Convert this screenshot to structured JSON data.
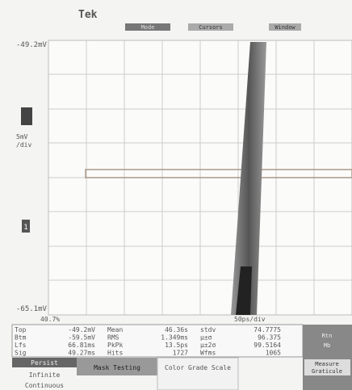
{
  "header": {
    "brand": "Tek",
    "buttons": [
      "Mode",
      "Cursors",
      "Window"
    ]
  },
  "screen": {
    "top_level": "-49.2mV",
    "scale": "5mV",
    "scale_unit": "/div",
    "marker": "1",
    "bottom_level": "-65.1mV",
    "left_readout": "40.7%",
    "timebase": "50ps/div"
  },
  "readouts": {
    "columns": [
      [
        [
          "Top",
          "-49.2mV"
        ],
        [
          "Btm",
          "-59.5mV"
        ],
        [
          "Lfs",
          "66.81ms"
        ],
        [
          "Sig",
          "49.27ms"
        ]
      ],
      [
        [
          "Mean",
          "46.36s"
        ],
        [
          "RMS",
          "1.349ms"
        ],
        [
          "PkPk",
          "13.5ps"
        ],
        [
          "Hits",
          "1727"
        ]
      ],
      [
        [
          "stdv",
          "74.7775"
        ],
        [
          "μ±σ",
          "96.375"
        ],
        [
          "μ±2σ",
          "99.5164"
        ],
        [
          "Wfms",
          "1065"
        ]
      ]
    ]
  },
  "menu": {
    "persist": [
      "Persist",
      "Infinite",
      "Continuous"
    ],
    "mask": "Mask Testing",
    "color": "Color Grade Scale",
    "right": [
      "Measure",
      "Graticule",
      "Rtn",
      "Mb"
    ]
  }
}
